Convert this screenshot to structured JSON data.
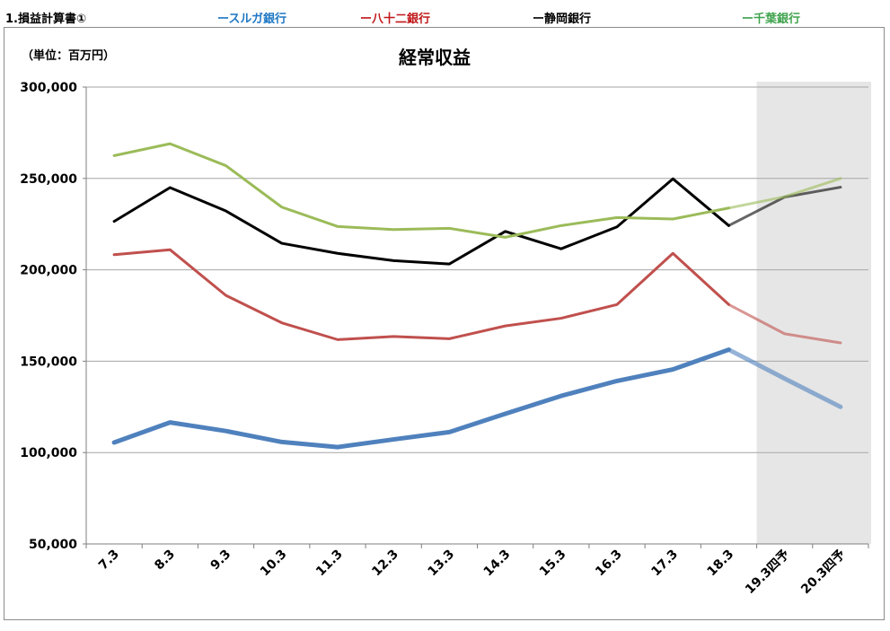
{
  "header": {
    "section_label": "1.損益計算書①",
    "legend": [
      {
        "label": "ースルガ銀行",
        "color": "#1f77c4"
      },
      {
        "label": "ー八十二銀行",
        "color": "#c0181a"
      },
      {
        "label": "ー静岡銀行",
        "color": "#000000"
      },
      {
        "label": "ー千葉銀行",
        "color": "#3fa34d"
      }
    ]
  },
  "chart_data": {
    "type": "line",
    "title": "経常収益",
    "unit_label": "（単位：百万円）",
    "categories": [
      "7.3",
      "8.3",
      "9.3",
      "10.3",
      "11.3",
      "12.3",
      "13.3",
      "14.3",
      "15.3",
      "16.3",
      "17.3",
      "18.3",
      "19.3四予",
      "20.3四予"
    ],
    "ylim": [
      50000,
      300000
    ],
    "yticks": [
      {
        "value": 50000,
        "label": "50,000"
      },
      {
        "value": 100000,
        "label": "100,000"
      },
      {
        "value": 150000,
        "label": "150,000"
      },
      {
        "value": 200000,
        "label": "200,000"
      },
      {
        "value": 250000,
        "label": "250,000"
      },
      {
        "value": 300000,
        "label": "300,000"
      }
    ],
    "forecast_start_index": 12,
    "grid": true,
    "series": [
      {
        "name": "スルガ銀行",
        "color": "#4f81bd",
        "width": 5,
        "values": [
          105500,
          116500,
          111800,
          105800,
          103000,
          107200,
          111200,
          121200,
          131000,
          139200,
          145500,
          156300,
          140500,
          125000
        ]
      },
      {
        "name": "八十二銀行",
        "color": "#c0504d",
        "width": 3,
        "values": [
          208300,
          211000,
          186000,
          171000,
          161800,
          163500,
          162300,
          169300,
          173500,
          181000,
          209000,
          181000,
          165000,
          160000
        ]
      },
      {
        "name": "静岡銀行",
        "color": "#000000",
        "width": 3,
        "values": [
          226500,
          245000,
          232200,
          214500,
          209000,
          205000,
          203200,
          221000,
          211500,
          223500,
          249800,
          224200,
          239800,
          245200
        ]
      },
      {
        "name": "千葉銀行",
        "color": "#9bbb59",
        "width": 3,
        "values": [
          262500,
          269000,
          257000,
          234300,
          223700,
          222000,
          222700,
          217800,
          224200,
          228600,
          227800,
          233800,
          240000,
          250000
        ]
      }
    ]
  }
}
